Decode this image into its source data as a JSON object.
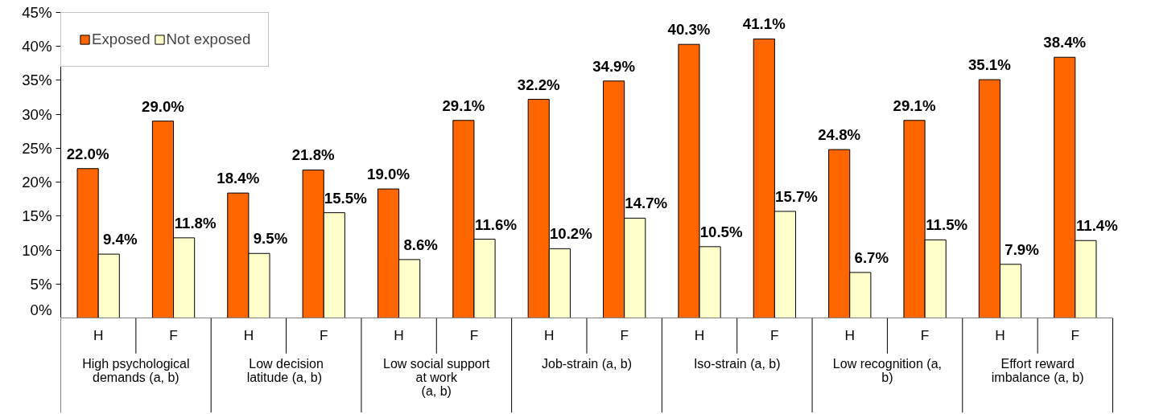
{
  "chart_data": {
    "type": "bar",
    "categories": [
      "H",
      "F",
      "H",
      "F",
      "H",
      "F",
      "H",
      "F",
      "H",
      "F",
      "H",
      "F",
      "H",
      "F"
    ],
    "series": [
      {
        "name": "Exposed",
        "color": "#ff6600",
        "values": [
          22.0,
          29.0,
          18.4,
          21.8,
          19.0,
          29.1,
          32.2,
          34.9,
          40.3,
          41.1,
          24.8,
          29.1,
          35.1,
          38.4
        ],
        "value_labels": [
          "22.0%",
          "29.0%",
          "18.4%",
          "21.8%",
          "19.0%",
          "29.1%",
          "32.2%",
          "34.9%",
          "40.3%",
          "41.1%",
          "24.8%",
          "29.1%",
          "35.1%",
          "38.4%"
        ]
      },
      {
        "name": "Not exposed",
        "color": "#ffffcc",
        "values": [
          9.4,
          11.8,
          9.5,
          15.5,
          8.6,
          11.6,
          10.2,
          14.7,
          10.5,
          15.7,
          6.7,
          11.5,
          7.9,
          11.4
        ],
        "value_labels": [
          "9.4%",
          "11.8%",
          "9.5%",
          "15.5%",
          "8.6%",
          "11.6%",
          "10.2%",
          "14.7%",
          "10.5%",
          "15.7%",
          "6.7%",
          "11.5%",
          "7.9%",
          "11.4%"
        ]
      }
    ],
    "annotations": [
      "High psychological\ndemands (a, b)",
      "Low decision\nlatitude  (a, b)",
      "Low social support\nat work\n(a, b)",
      "Job-strain (a, b)",
      "Iso-strain (a, b)",
      "Low recognition (a,\nb)",
      "Effort reward\nimbalance (a, b)"
    ],
    "ylim": [
      0,
      45
    ],
    "yticks": [
      {
        "value": 0,
        "label": "0%"
      },
      {
        "value": 5,
        "label": "5%"
      },
      {
        "value": 10,
        "label": "10%"
      },
      {
        "value": 15,
        "label": "15%"
      },
      {
        "value": 20,
        "label": "20%"
      },
      {
        "value": 25,
        "label": "25%"
      },
      {
        "value": 30,
        "label": "30%"
      },
      {
        "value": 35,
        "label": "35%"
      },
      {
        "value": 40,
        "label": "40%"
      },
      {
        "value": 45,
        "label": "45%"
      }
    ],
    "grid": false,
    "legend": "top left"
  }
}
